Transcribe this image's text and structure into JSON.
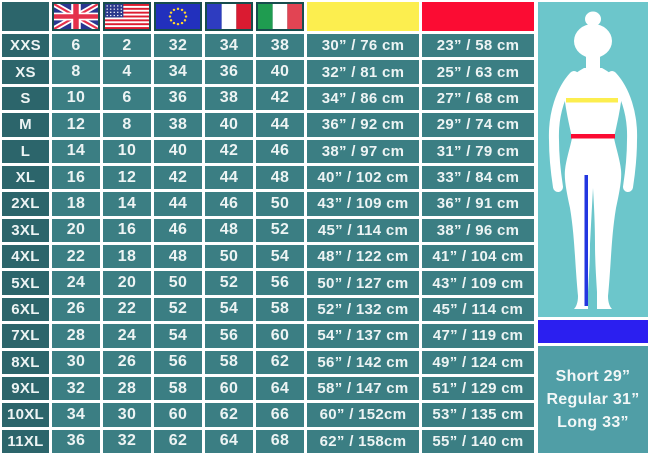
{
  "table": {
    "columns": [
      {
        "key": "size",
        "type": "blank",
        "name": "size-column-header"
      },
      {
        "key": "uk",
        "type": "flag",
        "flag": "uk",
        "name": "uk-flag-icon"
      },
      {
        "key": "us",
        "type": "flag",
        "flag": "us",
        "name": "us-flag-icon"
      },
      {
        "key": "eu",
        "type": "flag",
        "flag": "eu",
        "name": "eu-flag-icon"
      },
      {
        "key": "fr",
        "type": "flag",
        "flag": "france",
        "name": "france-flag-icon"
      },
      {
        "key": "it",
        "type": "flag",
        "flag": "italy",
        "name": "italy-flag-icon"
      },
      {
        "key": "bust",
        "type": "swatch",
        "color": "#fcee4f",
        "name": "bust-color-swatch"
      },
      {
        "key": "waist",
        "type": "swatch",
        "color": "#fb0c33",
        "name": "waist-color-swatch"
      }
    ],
    "rows": [
      {
        "size": "XXS",
        "values": [
          "6",
          "2",
          "32",
          "34",
          "38",
          "30” / 76 cm",
          "23” / 58 cm"
        ]
      },
      {
        "size": "XS",
        "values": [
          "8",
          "4",
          "34",
          "36",
          "40",
          "32” / 81 cm",
          "25” / 63 cm"
        ]
      },
      {
        "size": "S",
        "values": [
          "10",
          "6",
          "36",
          "38",
          "42",
          "34” / 86 cm",
          "27” / 68 cm"
        ]
      },
      {
        "size": "M",
        "values": [
          "12",
          "8",
          "38",
          "40",
          "44",
          "36” / 92 cm",
          "29” / 74 cm"
        ]
      },
      {
        "size": "L",
        "values": [
          "14",
          "10",
          "40",
          "42",
          "46",
          "38” / 97 cm",
          "31” / 79 cm"
        ]
      },
      {
        "size": "XL",
        "values": [
          "16",
          "12",
          "42",
          "44",
          "48",
          "40” / 102 cm",
          "33” / 84 cm"
        ]
      },
      {
        "size": "2XL",
        "values": [
          "18",
          "14",
          "44",
          "46",
          "50",
          "43” / 109 cm",
          "36” / 91 cm"
        ]
      },
      {
        "size": "3XL",
        "values": [
          "20",
          "16",
          "46",
          "48",
          "52",
          "45” / 114 cm",
          "38” / 96 cm"
        ]
      },
      {
        "size": "4XL",
        "values": [
          "22",
          "18",
          "48",
          "50",
          "54",
          "48” / 122 cm",
          "41” / 104 cm"
        ]
      },
      {
        "size": "5XL",
        "values": [
          "24",
          "20",
          "50",
          "52",
          "56",
          "50” / 127 cm",
          "43” / 109 cm"
        ]
      },
      {
        "size": "6XL",
        "values": [
          "26",
          "22",
          "52",
          "54",
          "58",
          "52” / 132 cm",
          "45” / 114 cm"
        ]
      },
      {
        "size": "7XL",
        "values": [
          "28",
          "24",
          "54",
          "56",
          "60",
          "54” / 137 cm",
          "47” / 119 cm"
        ]
      },
      {
        "size": "8XL",
        "values": [
          "30",
          "26",
          "56",
          "58",
          "62",
          "56” / 142 cm",
          "49” / 124 cm"
        ]
      },
      {
        "size": "9XL",
        "values": [
          "32",
          "28",
          "58",
          "60",
          "64",
          "58” / 147 cm",
          "51” / 129 cm"
        ]
      },
      {
        "size": "10XL",
        "values": [
          "34",
          "30",
          "60",
          "62",
          "66",
          "60” / 152cm",
          "53” / 135 cm"
        ]
      },
      {
        "size": "11XL",
        "values": [
          "36",
          "32",
          "62",
          "64",
          "68",
          "62” / 158cm",
          "55” / 140 cm"
        ]
      }
    ]
  },
  "panel": {
    "figure_icon": "female-body-silhouette",
    "bust_line_color": "#fcee4f",
    "waist_line_color": "#fb0c33",
    "inseam_line_color": "#2337e0",
    "inseam_bar_color": "#2b1ff0",
    "lengths": [
      "Short 29”",
      "Regular 31”",
      "Long 33”"
    ]
  },
  "colors": {
    "cell_teal": "#3b7e83",
    "label_teal": "#2c656b",
    "grid_lines": "#ffffff",
    "figure_bg": "#6cc6cb",
    "lengths_bg": "#509ea6"
  }
}
